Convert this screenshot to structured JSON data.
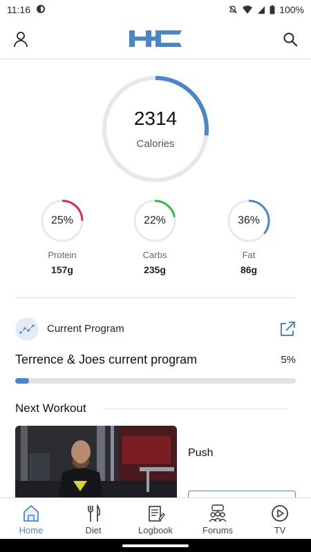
{
  "status_bar": {
    "time": "11:16",
    "battery": "100%"
  },
  "header": {
    "logo_text": "HC"
  },
  "calories": {
    "value": "2314",
    "label": "Calories",
    "progress": 0.27
  },
  "macros": [
    {
      "percent": "25%",
      "name": "Protein",
      "grams": "157g",
      "progress": 0.25,
      "color": "#e0245e"
    },
    {
      "percent": "22%",
      "name": "Carbs",
      "grams": "235g",
      "progress": 0.22,
      "color": "#2bc23a"
    },
    {
      "percent": "36%",
      "name": "Fat",
      "grams": "86g",
      "progress": 0.36,
      "color": "#4a86c8"
    }
  ],
  "program": {
    "title": "Current Program",
    "name": "Terrence & Joes current program",
    "percent": "5%",
    "progress": 0.05
  },
  "next_workout": {
    "title": "Next Workout",
    "name": "Push"
  },
  "nav": {
    "items": [
      {
        "label": "Home",
        "icon": "home-icon",
        "active": true
      },
      {
        "label": "Diet",
        "icon": "utensils-icon",
        "active": false
      },
      {
        "label": "Logbook",
        "icon": "notebook-icon",
        "active": false
      },
      {
        "label": "Forums",
        "icon": "people-icon",
        "active": false
      },
      {
        "label": "TV",
        "icon": "play-icon",
        "active": false
      }
    ]
  },
  "colors": {
    "accent": "#4a86c8",
    "ring_track": "#e8e8e8"
  }
}
